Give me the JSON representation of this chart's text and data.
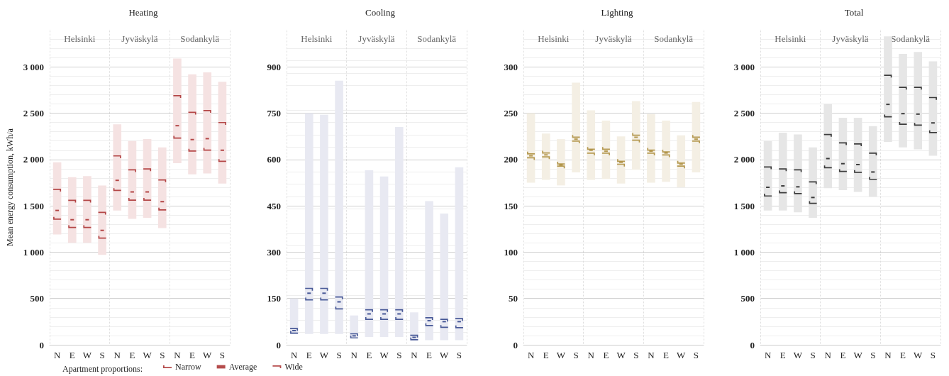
{
  "chart_data": [
    {
      "type": "bar",
      "title": "Heating",
      "ylabel": "Mean energy consumption, kWh/a",
      "legend_title": "Apartment proportions:",
      "legend": "bottom",
      "grid": "y",
      "annotations": [
        "Helsinki",
        "Jyväskylä",
        "Sodankylä"
      ],
      "categories": [
        "N",
        "E",
        "W",
        "S",
        "N",
        "E",
        "W",
        "S",
        "N",
        "E",
        "W",
        "S"
      ],
      "ylim": [
        0,
        3400
      ],
      "yticks": [
        0,
        500,
        {
          "value": 1000,
          "label": "1 000"
        },
        {
          "value": 1500,
          "label": "1 500"
        },
        {
          "value": 2000,
          "label": "2 000"
        },
        {
          "value": 2500,
          "label": "2 500"
        },
        {
          "value": 3000,
          "label": "3 000"
        }
      ],
      "series": [
        {
          "type": "bar",
          "color": "#f5e2e2",
          "base": [
            1190,
            1100,
            1100,
            970,
            1450,
            1360,
            1370,
            1260,
            1960,
            1840,
            1850,
            1740
          ],
          "values": [
            780,
            710,
            720,
            750,
            930,
            840,
            850,
            870,
            1130,
            1080,
            1090,
            1100
          ]
        },
        {
          "type": "scatter",
          "name": "Narrow",
          "color": "#a31f1f",
          "values": [
            1365,
            1275,
            1275,
            1160,
            1675,
            1570,
            1570,
            1465,
            2240,
            2100,
            2110,
            1990
          ]
        },
        {
          "type": "scatter",
          "name": "Average",
          "color": "#a31f1f",
          "values": [
            1450,
            1350,
            1350,
            1235,
            1775,
            1650,
            1650,
            1545,
            2365,
            2215,
            2225,
            2100
          ]
        },
        {
          "type": "scatter",
          "name": "Wide",
          "color": "#a31f1f",
          "values": [
            1670,
            1550,
            1550,
            1420,
            2030,
            1880,
            1890,
            1770,
            2680,
            2500,
            2520,
            2390
          ]
        }
      ]
    },
    {
      "type": "bar",
      "title": "Cooling",
      "grid": "y",
      "annotations": [
        "Helsinki",
        "Jyväskylä",
        "Sodankylä"
      ],
      "categories": [
        "N",
        "E",
        "W",
        "S",
        "N",
        "E",
        "W",
        "S",
        "N",
        "E",
        "W",
        "S"
      ],
      "ylim": [
        0,
        1020
      ],
      "yticks": [
        0,
        150,
        300,
        450,
        600,
        750,
        900
      ],
      "series": [
        {
          "type": "bar",
          "color": "#e8e9f2",
          "base": [
            35,
            35,
            35,
            35,
            25,
            25,
            25,
            25,
            15,
            15,
            15,
            15
          ],
          "values": [
            115,
            715,
            710,
            820,
            70,
            540,
            520,
            680,
            90,
            450,
            410,
            560
          ]
        },
        {
          "type": "scatter",
          "color": "#1f3580",
          "values": [
            40,
            148,
            148,
            119,
            25,
            85,
            85,
            85,
            19,
            65,
            59,
            58
          ]
        },
        {
          "type": "scatter",
          "color": "#1f3580",
          "values": [
            46,
            167,
            167,
            139,
            29,
            100,
            100,
            100,
            24,
            78,
            75,
            75
          ]
        },
        {
          "type": "scatter",
          "color": "#1f3580",
          "values": [
            50,
            180,
            180,
            152,
            33,
            111,
            111,
            111,
            28,
            85,
            80,
            82
          ]
        }
      ]
    },
    {
      "type": "bar",
      "title": "Lighting",
      "grid": "y",
      "annotations": [
        "Helsinki",
        "Jyväskylä",
        "Sodankylä"
      ],
      "categories": [
        "N",
        "E",
        "W",
        "S",
        "N",
        "E",
        "W",
        "S",
        "N",
        "E",
        "W",
        "S"
      ],
      "ylim": [
        0,
        340
      ],
      "yticks": [
        0,
        50,
        100,
        150,
        200,
        250,
        300
      ],
      "series": [
        {
          "type": "bar",
          "color": "#f4efe4",
          "base": [
            175,
            178,
            172,
            186,
            178,
            179,
            174,
            189,
            175,
            176,
            170,
            186
          ],
          "values": [
            75,
            50,
            50,
            97,
            75,
            63,
            51,
            74,
            74,
            66,
            56,
            76
          ]
        },
        {
          "type": "scatter",
          "color": "#a5832c",
          "values": [
            207,
            208,
            196,
            225,
            212,
            212,
            199,
            227,
            211,
            209,
            197,
            225
          ]
        },
        {
          "type": "scatter",
          "color": "#a5832c",
          "values": [
            204,
            205,
            194,
            222,
            210,
            209,
            197,
            224,
            209,
            207,
            195,
            222
          ]
        },
        {
          "type": "scatter",
          "color": "#a5832c",
          "values": [
            201,
            202,
            192,
            219,
            206,
            206,
            194,
            220,
            206,
            204,
            192,
            219
          ]
        }
      ]
    },
    {
      "type": "bar",
      "title": "Total",
      "grid": "y",
      "annotations": [
        "Helsinki",
        "Jyväskylä",
        "Sodankylä"
      ],
      "categories": [
        "N",
        "E",
        "W",
        "S",
        "N",
        "E",
        "W",
        "S",
        "N",
        "E",
        "W",
        "S"
      ],
      "ylim": [
        0,
        3400
      ],
      "yticks": [
        0,
        500,
        {
          "value": 1000,
          "label": "1 000"
        },
        {
          "value": 1500,
          "label": "1 500"
        },
        {
          "value": 2000,
          "label": "2 000"
        },
        {
          "value": 2500,
          "label": "2 500"
        },
        {
          "value": 3000,
          "label": "3 000"
        }
      ],
      "series": [
        {
          "type": "bar",
          "color": "#e6e6e6",
          "base": [
            1450,
            1450,
            1430,
            1370,
            1690,
            1670,
            1650,
            1600,
            2190,
            2130,
            2110,
            2040
          ],
          "values": [
            750,
            840,
            840,
            760,
            910,
            780,
            800,
            760,
            1140,
            1010,
            1050,
            1020
          ]
        },
        {
          "type": "scatter",
          "color": "#111111",
          "values": [
            1615,
            1650,
            1640,
            1535,
            1920,
            1880,
            1870,
            1795,
            2470,
            2390,
            2380,
            2300
          ]
        },
        {
          "type": "scatter",
          "color": "#111111",
          "values": [
            1700,
            1715,
            1705,
            1590,
            2010,
            1955,
            1945,
            1865,
            2595,
            2495,
            2490,
            2395
          ]
        },
        {
          "type": "scatter",
          "color": "#111111",
          "values": [
            1910,
            1890,
            1880,
            1750,
            2260,
            2170,
            2160,
            2060,
            2900,
            2770,
            2770,
            2660
          ]
        }
      ]
    }
  ]
}
